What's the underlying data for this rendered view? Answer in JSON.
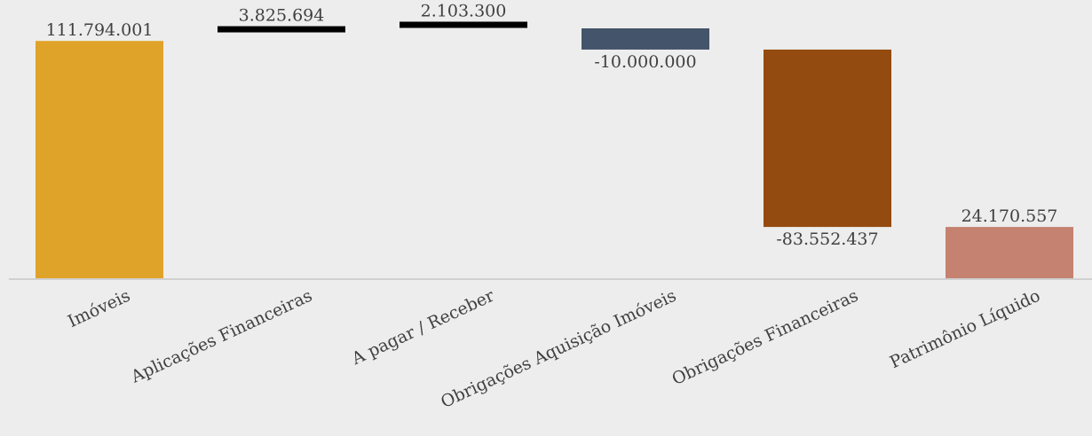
{
  "chart_data": {
    "type": "waterfall",
    "title": "",
    "xlabel": "",
    "ylabel": "",
    "categories": [
      "Imóveis",
      "Aplicações Financeiras",
      "A pagar / Receber",
      "Obrigações Aquisição Imóveis",
      "Obrigações Financeiras",
      "Patrimônio Líquido"
    ],
    "values": [
      111794001,
      3825694,
      2103300,
      -10000000,
      -83552437,
      24170557
    ],
    "value_labels": [
      "111.794.001",
      "3.825.694",
      "2.103.300",
      "-10.000.000",
      "-83.552.437",
      "24.170.557"
    ],
    "bar_kinds": [
      "total",
      "delta",
      "delta",
      "delta",
      "delta",
      "total"
    ],
    "colors": [
      "#e0a32a",
      "#000000",
      "#000000",
      "#44546a",
      "#944b0f",
      "#c58270"
    ],
    "ylim": [
      0,
      117722995
    ],
    "grid": false,
    "legend": "none"
  }
}
